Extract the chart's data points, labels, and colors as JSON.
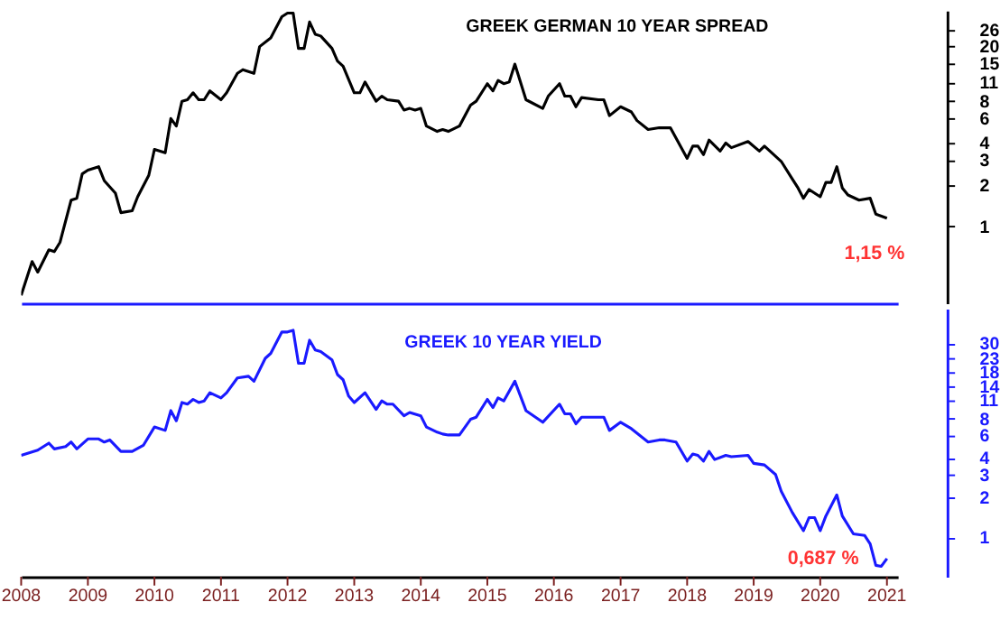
{
  "chart_data": [
    {
      "type": "line",
      "title": "GREEK GERMAN 10 YEAR SPREAD",
      "log": true,
      "grid": false,
      "tick_labels": "y",
      "x": [
        "2008-01",
        "2008-03",
        "2008-04",
        "2008-06",
        "2008-07",
        "2008-08",
        "2008-10",
        "2008-11",
        "2008-12",
        "2009-01",
        "2009-03",
        "2009-04",
        "2009-06",
        "2009-07",
        "2009-09",
        "2009-10",
        "2009-12",
        "2010-01",
        "2010-03",
        "2010-04",
        "2010-05",
        "2010-06",
        "2010-07",
        "2010-08",
        "2010-09",
        "2010-10",
        "2010-11",
        "2011-01",
        "2011-02",
        "2011-04",
        "2011-05",
        "2011-07",
        "2011-08",
        "2011-10",
        "2011-12",
        "2012-01",
        "2012-02",
        "2012-03",
        "2012-04",
        "2012-05",
        "2012-06",
        "2012-07",
        "2012-09",
        "2012-10",
        "2012-11",
        "2013-01",
        "2013-02",
        "2013-03",
        "2013-05",
        "2013-06",
        "2013-07",
        "2013-09",
        "2013-10",
        "2013-11",
        "2013-12",
        "2014-01",
        "2014-02",
        "2014-04",
        "2014-05",
        "2014-06",
        "2014-08",
        "2014-10",
        "2014-11",
        "2015-01",
        "2015-02",
        "2015-03",
        "2015-04",
        "2015-05",
        "2015-06",
        "2015-08",
        "2015-11",
        "2015-12",
        "2016-02",
        "2016-03",
        "2016-04",
        "2016-05",
        "2016-06",
        "2016-09",
        "2016-10",
        "2016-11",
        "2017-01",
        "2017-03",
        "2017-04",
        "2017-06",
        "2017-08",
        "2017-10",
        "2018-01",
        "2018-02",
        "2018-03",
        "2018-04",
        "2018-05",
        "2018-07",
        "2018-08",
        "2018-09",
        "2018-12",
        "2019-02",
        "2019-03",
        "2019-06",
        "2019-08",
        "2019-09",
        "2019-10",
        "2019-11",
        "2020-01",
        "2020-02",
        "2020-03",
        "2020-04",
        "2020-05",
        "2020-06",
        "2020-08",
        "2020-10",
        "2020-11",
        "2021-01"
      ],
      "series": [
        {
          "color": "#000000",
          "values": [
            0.32,
            0.56,
            0.47,
            0.68,
            0.66,
            0.77,
            1.55,
            1.6,
            2.4,
            2.55,
            2.7,
            2.14,
            1.74,
            1.26,
            1.3,
            1.64,
            2.34,
            3.6,
            3.4,
            6.0,
            5.3,
            8.0,
            8.2,
            9.2,
            8.2,
            8.2,
            9.5,
            8.2,
            9.2,
            12.7,
            13.5,
            12.7,
            19.8,
            22.9,
            32.5,
            34.5,
            34.5,
            19.2,
            19.2,
            29.8,
            24.3,
            23.6,
            19.2,
            15.6,
            14.3,
            9.2,
            9.2,
            11.0,
            8.0,
            8.7,
            8.2,
            8.0,
            6.9,
            7.1,
            6.9,
            7.1,
            5.3,
            4.85,
            5.0,
            4.85,
            5.3,
            7.5,
            8.0,
            10.7,
            9.5,
            11.3,
            10.7,
            11.0,
            14.8,
            8.2,
            7.1,
            8.7,
            10.7,
            8.7,
            8.7,
            7.3,
            8.5,
            8.2,
            8.2,
            6.3,
            7.3,
            6.7,
            5.8,
            5.0,
            5.15,
            5.15,
            3.1,
            3.8,
            3.8,
            3.3,
            4.2,
            3.5,
            4.0,
            3.7,
            4.1,
            3.5,
            3.8,
            2.95,
            2.2,
            1.9,
            1.6,
            1.85,
            1.64,
            2.08,
            2.08,
            2.7,
            1.9,
            1.69,
            1.55,
            1.6,
            1.23,
            1.15
          ]
        }
      ],
      "xlim": [
        "2008-01-01",
        "2021-03-01"
      ],
      "ylim": [
        0.28,
        36
      ],
      "yticks": [
        1,
        2,
        3,
        4,
        6,
        8,
        11,
        15,
        20,
        26
      ],
      "annotations": [
        {
          "text": "1,15 %",
          "x": "2021-01",
          "y": 1.15
        }
      ]
    },
    {
      "type": "line",
      "title": "GREEK 10 YEAR YIELD",
      "log": true,
      "grid": false,
      "x": [
        "2008-01",
        "2008-04",
        "2008-06",
        "2008-07",
        "2008-09",
        "2008-10",
        "2008-11",
        "2009-01",
        "2009-03",
        "2009-04",
        "2009-05",
        "2009-07",
        "2009-09",
        "2009-11",
        "2010-01",
        "2010-03",
        "2010-04",
        "2010-05",
        "2010-06",
        "2010-07",
        "2010-08",
        "2010-09",
        "2010-10",
        "2010-11",
        "2011-01",
        "2011-02",
        "2011-04",
        "2011-06",
        "2011-07",
        "2011-09",
        "2011-10",
        "2011-12",
        "2012-01",
        "2012-02",
        "2012-03",
        "2012-04",
        "2012-05",
        "2012-06",
        "2012-07",
        "2012-09",
        "2012-10",
        "2012-11",
        "2012-12",
        "2013-01",
        "2013-03",
        "2013-05",
        "2013-06",
        "2013-07",
        "2013-08",
        "2013-10",
        "2013-11",
        "2014-01",
        "2014-02",
        "2014-04",
        "2014-05",
        "2014-06",
        "2014-08",
        "2014-10",
        "2014-11",
        "2015-01",
        "2015-02",
        "2015-03",
        "2015-04",
        "2015-06",
        "2015-08",
        "2015-11",
        "2016-02",
        "2016-03",
        "2016-04",
        "2016-05",
        "2016-06",
        "2016-10",
        "2016-11",
        "2017-01",
        "2017-03",
        "2017-06",
        "2017-08",
        "2017-09",
        "2017-11",
        "2018-01",
        "2018-02",
        "2018-03",
        "2018-04",
        "2018-05",
        "2018-06",
        "2018-08",
        "2018-09",
        "2018-12",
        "2019-01",
        "2019-03",
        "2019-05",
        "2019-06",
        "2019-08",
        "2019-10",
        "2019-11",
        "2019-12",
        "2020-01",
        "2020-02",
        "2020-04",
        "2020-05",
        "2020-07",
        "2020-09",
        "2020-10",
        "2020-11",
        "2020-12",
        "2021-01"
      ],
      "series": [
        {
          "color": "#1a1aff",
          "values": [
            4.2,
            4.6,
            5.2,
            4.7,
            4.9,
            5.3,
            4.7,
            5.6,
            5.6,
            5.3,
            5.5,
            4.5,
            4.5,
            5.0,
            6.9,
            6.5,
            9.2,
            7.7,
            10.6,
            10.3,
            11.2,
            10.6,
            10.9,
            12.6,
            11.5,
            12.6,
            16.3,
            16.8,
            15.4,
            23.0,
            25.1,
            36.5,
            36.5,
            37.6,
            21.1,
            21.1,
            31.6,
            26.6,
            25.9,
            22.4,
            17.3,
            15.8,
            11.9,
            10.6,
            12.6,
            9.4,
            10.9,
            10.3,
            10.3,
            8.4,
            8.9,
            8.4,
            6.9,
            6.3,
            6.1,
            6.0,
            6.0,
            7.9,
            8.2,
            11.2,
            9.7,
            11.5,
            10.9,
            15.4,
            9.2,
            7.5,
            10.3,
            8.7,
            8.7,
            7.3,
            8.2,
            8.2,
            6.5,
            7.5,
            6.7,
            5.3,
            5.5,
            5.5,
            5.3,
            3.8,
            4.3,
            4.2,
            3.8,
            4.5,
            3.9,
            4.2,
            4.1,
            4.2,
            3.65,
            3.55,
            3.0,
            2.24,
            1.54,
            1.12,
            1.41,
            1.41,
            1.12,
            1.45,
            2.1,
            1.45,
            1.06,
            1.03,
            0.89,
            0.61,
            0.6,
            0.687
          ]
        }
      ],
      "xlim": [
        "2008-01-01",
        "2021-03-01"
      ],
      "xticks": [
        "2008",
        "2009",
        "2010",
        "2011",
        "2012",
        "2013",
        "2014",
        "2015",
        "2016",
        "2017",
        "2018",
        "2019",
        "2020",
        "2021"
      ],
      "ylim": [
        0.5,
        55
      ],
      "yticks": [
        1,
        2,
        3,
        4,
        6,
        8,
        11,
        14,
        18,
        23,
        30
      ],
      "annotations": [
        {
          "text": "0,687 %",
          "x": "2021-01",
          "y": 0.687
        }
      ]
    }
  ]
}
